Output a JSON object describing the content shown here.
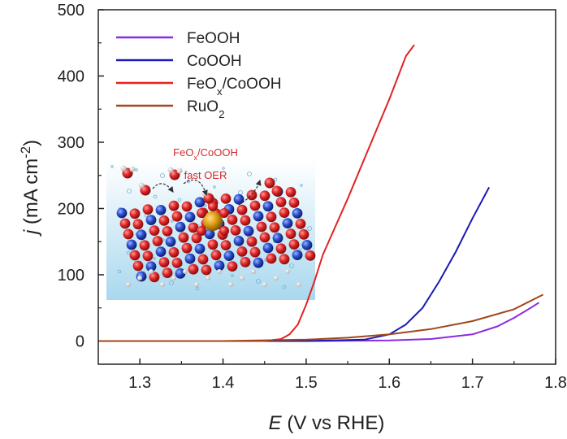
{
  "chart_data": {
    "type": "line",
    "xlabel": {
      "symbol": "E",
      "text": " (V vs RHE)"
    },
    "ylabel": {
      "symbol": "j",
      "text": " (mA cm",
      "sup": "-2",
      "close": ")"
    },
    "xlim": [
      1.25,
      1.8
    ],
    "ylim": [
      -35,
      500
    ],
    "xticks": [
      1.3,
      1.4,
      1.5,
      1.6,
      1.7,
      1.8
    ],
    "xtick_labels": [
      "1.3",
      "1.4",
      "1.5",
      "1.6",
      "1.7",
      "1.8"
    ],
    "yticks": [
      0,
      100,
      200,
      300,
      400,
      500
    ],
    "ytick_labels": [
      "0",
      "100",
      "200",
      "300",
      "400",
      "500"
    ],
    "legend_position": "top-left",
    "series": [
      {
        "name": "FeOOH",
        "label_parts": [
          {
            "text": "FeOOH"
          }
        ],
        "color": "#8a2be2",
        "x": [
          1.25,
          1.5,
          1.6,
          1.65,
          1.7,
          1.73,
          1.75,
          1.77,
          1.78
        ],
        "y": [
          0,
          0,
          1,
          3,
          10,
          22,
          35,
          50,
          58
        ]
      },
      {
        "name": "CoOOH",
        "label_parts": [
          {
            "text": "CoOOH"
          }
        ],
        "color": "#1a1ab8",
        "x": [
          1.25,
          1.5,
          1.57,
          1.6,
          1.62,
          1.64,
          1.66,
          1.68,
          1.7,
          1.72
        ],
        "y": [
          0,
          0,
          2,
          10,
          25,
          50,
          90,
          135,
          185,
          232
        ]
      },
      {
        "name": "FeOx/CoOOH",
        "label_parts": [
          {
            "text": "FeO"
          },
          {
            "text": "x",
            "sub": true
          },
          {
            "text": "/CoOOH"
          }
        ],
        "color": "#e32222",
        "x": [
          1.25,
          1.45,
          1.47,
          1.48,
          1.49,
          1.5,
          1.51,
          1.52,
          1.55,
          1.58,
          1.6,
          1.62,
          1.63
        ],
        "y": [
          0,
          0,
          3,
          10,
          25,
          55,
          90,
          130,
          215,
          305,
          365,
          430,
          447
        ]
      },
      {
        "name": "RuO2",
        "label_parts": [
          {
            "text": "RuO"
          },
          {
            "text": "2",
            "sub": true
          }
        ],
        "color": "#a0461a",
        "x": [
          1.25,
          1.4,
          1.5,
          1.55,
          1.6,
          1.65,
          1.7,
          1.75,
          1.785
        ],
        "y": [
          0,
          0,
          2,
          5,
          10,
          18,
          30,
          48,
          70
        ]
      }
    ],
    "inset": {
      "line1_parts": [
        {
          "text": "FeO"
        },
        {
          "text": "x",
          "sub": true
        },
        {
          "text": "/CoOOH"
        }
      ],
      "line2": "fast OER"
    }
  }
}
